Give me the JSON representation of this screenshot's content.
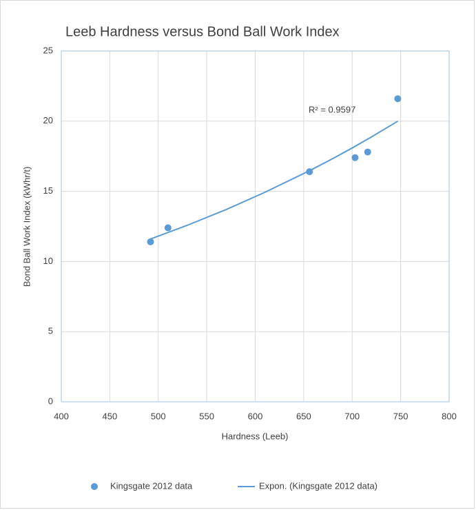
{
  "chart_data": {
    "type": "scatter",
    "title": "Leeb Hardness versus Bond Ball Work Index",
    "x_label": "Hardness (Leeb)",
    "y_label": "Bond Ball Work Index (kWhr/t)",
    "xlim": [
      400,
      800
    ],
    "xticks": [
      400,
      450,
      500,
      550,
      600,
      650,
      700,
      750,
      800
    ],
    "ylim": [
      0,
      25
    ],
    "yticks": [
      0,
      5,
      10,
      15,
      20,
      25
    ],
    "grid": true,
    "legend": "bottom",
    "annotation": "R² = 0.9597",
    "series": [
      {
        "name": "Kingsgate 2012 data",
        "color": "#5b9bd5",
        "mark": "scatter",
        "x": [
          492,
          510,
          656,
          703,
          716,
          747
        ],
        "values": [
          11.4,
          12.4,
          16.4,
          17.4,
          17.8,
          21.6
        ]
      },
      {
        "name": "Expon. (Kingsgate 2012 data)",
        "color": "#5b9bd5",
        "mark": "line",
        "x": [
          492,
          530,
          570,
          610,
          656,
          680,
          700,
          720,
          747
        ],
        "values": [
          11.6,
          12.58,
          13.7,
          14.93,
          16.47,
          17.33,
          18.09,
          18.88,
          20.0
        ]
      }
    ]
  }
}
